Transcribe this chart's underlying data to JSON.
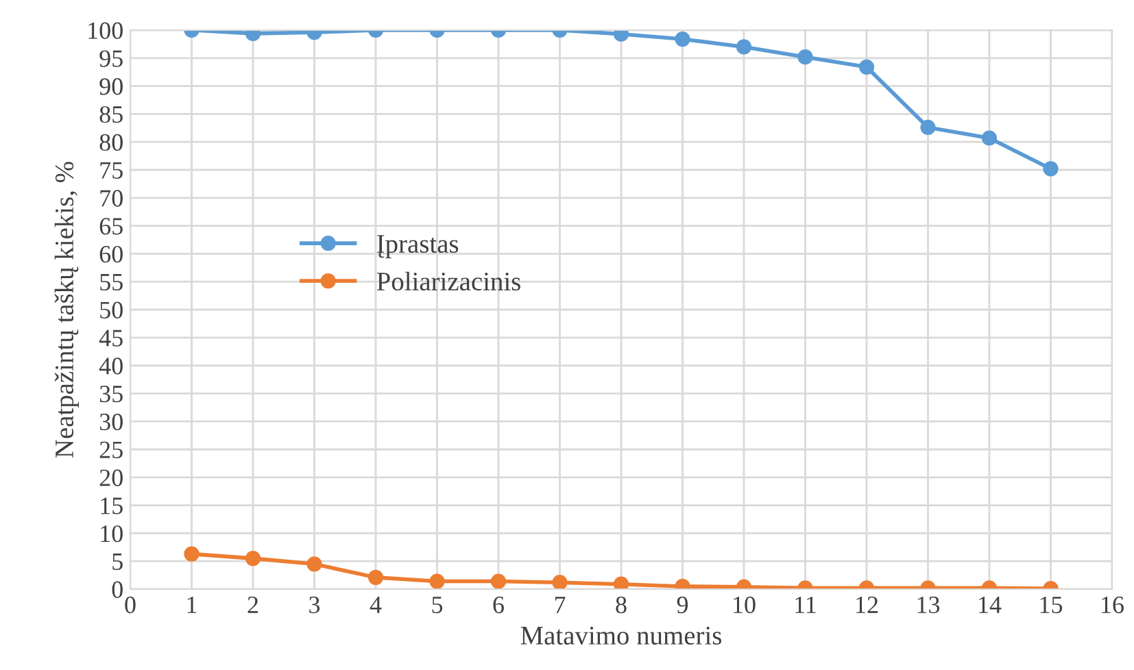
{
  "chart_data": {
    "type": "line",
    "xlabel": "Matavimo numeris",
    "ylabel": "Neatpažintų taškų kiekis, %",
    "x": [
      1,
      2,
      3,
      4,
      5,
      6,
      7,
      8,
      9,
      10,
      11,
      12,
      13,
      14,
      15
    ],
    "series": [
      {
        "name": "Įprastas",
        "color": "#5b9bd5",
        "values": [
          100,
          99.4,
          99.6,
          100,
          100,
          100,
          100,
          99.3,
          98.4,
          97,
          95.2,
          93.4,
          82.6,
          80.7,
          75.2
        ]
      },
      {
        "name": "Poliarizacinis",
        "color": "#ed7d31",
        "values": [
          6.3,
          5.5,
          4.5,
          2.1,
          1.4,
          1.4,
          1.2,
          0.9,
          0.5,
          0.4,
          0.2,
          0.2,
          0.2,
          0.2,
          0.1
        ]
      }
    ],
    "xlim": [
      0,
      16
    ],
    "xticks": [
      0,
      1,
      2,
      3,
      4,
      5,
      6,
      7,
      8,
      9,
      10,
      11,
      12,
      13,
      14,
      15,
      16
    ],
    "ylim": [
      0,
      100
    ],
    "yticks": [
      0,
      5,
      10,
      15,
      20,
      25,
      30,
      35,
      40,
      45,
      50,
      55,
      60,
      65,
      70,
      75,
      80,
      85,
      90,
      95,
      100
    ],
    "grid": true,
    "legend": "left",
    "marker": "circle",
    "line_style": "solid"
  }
}
